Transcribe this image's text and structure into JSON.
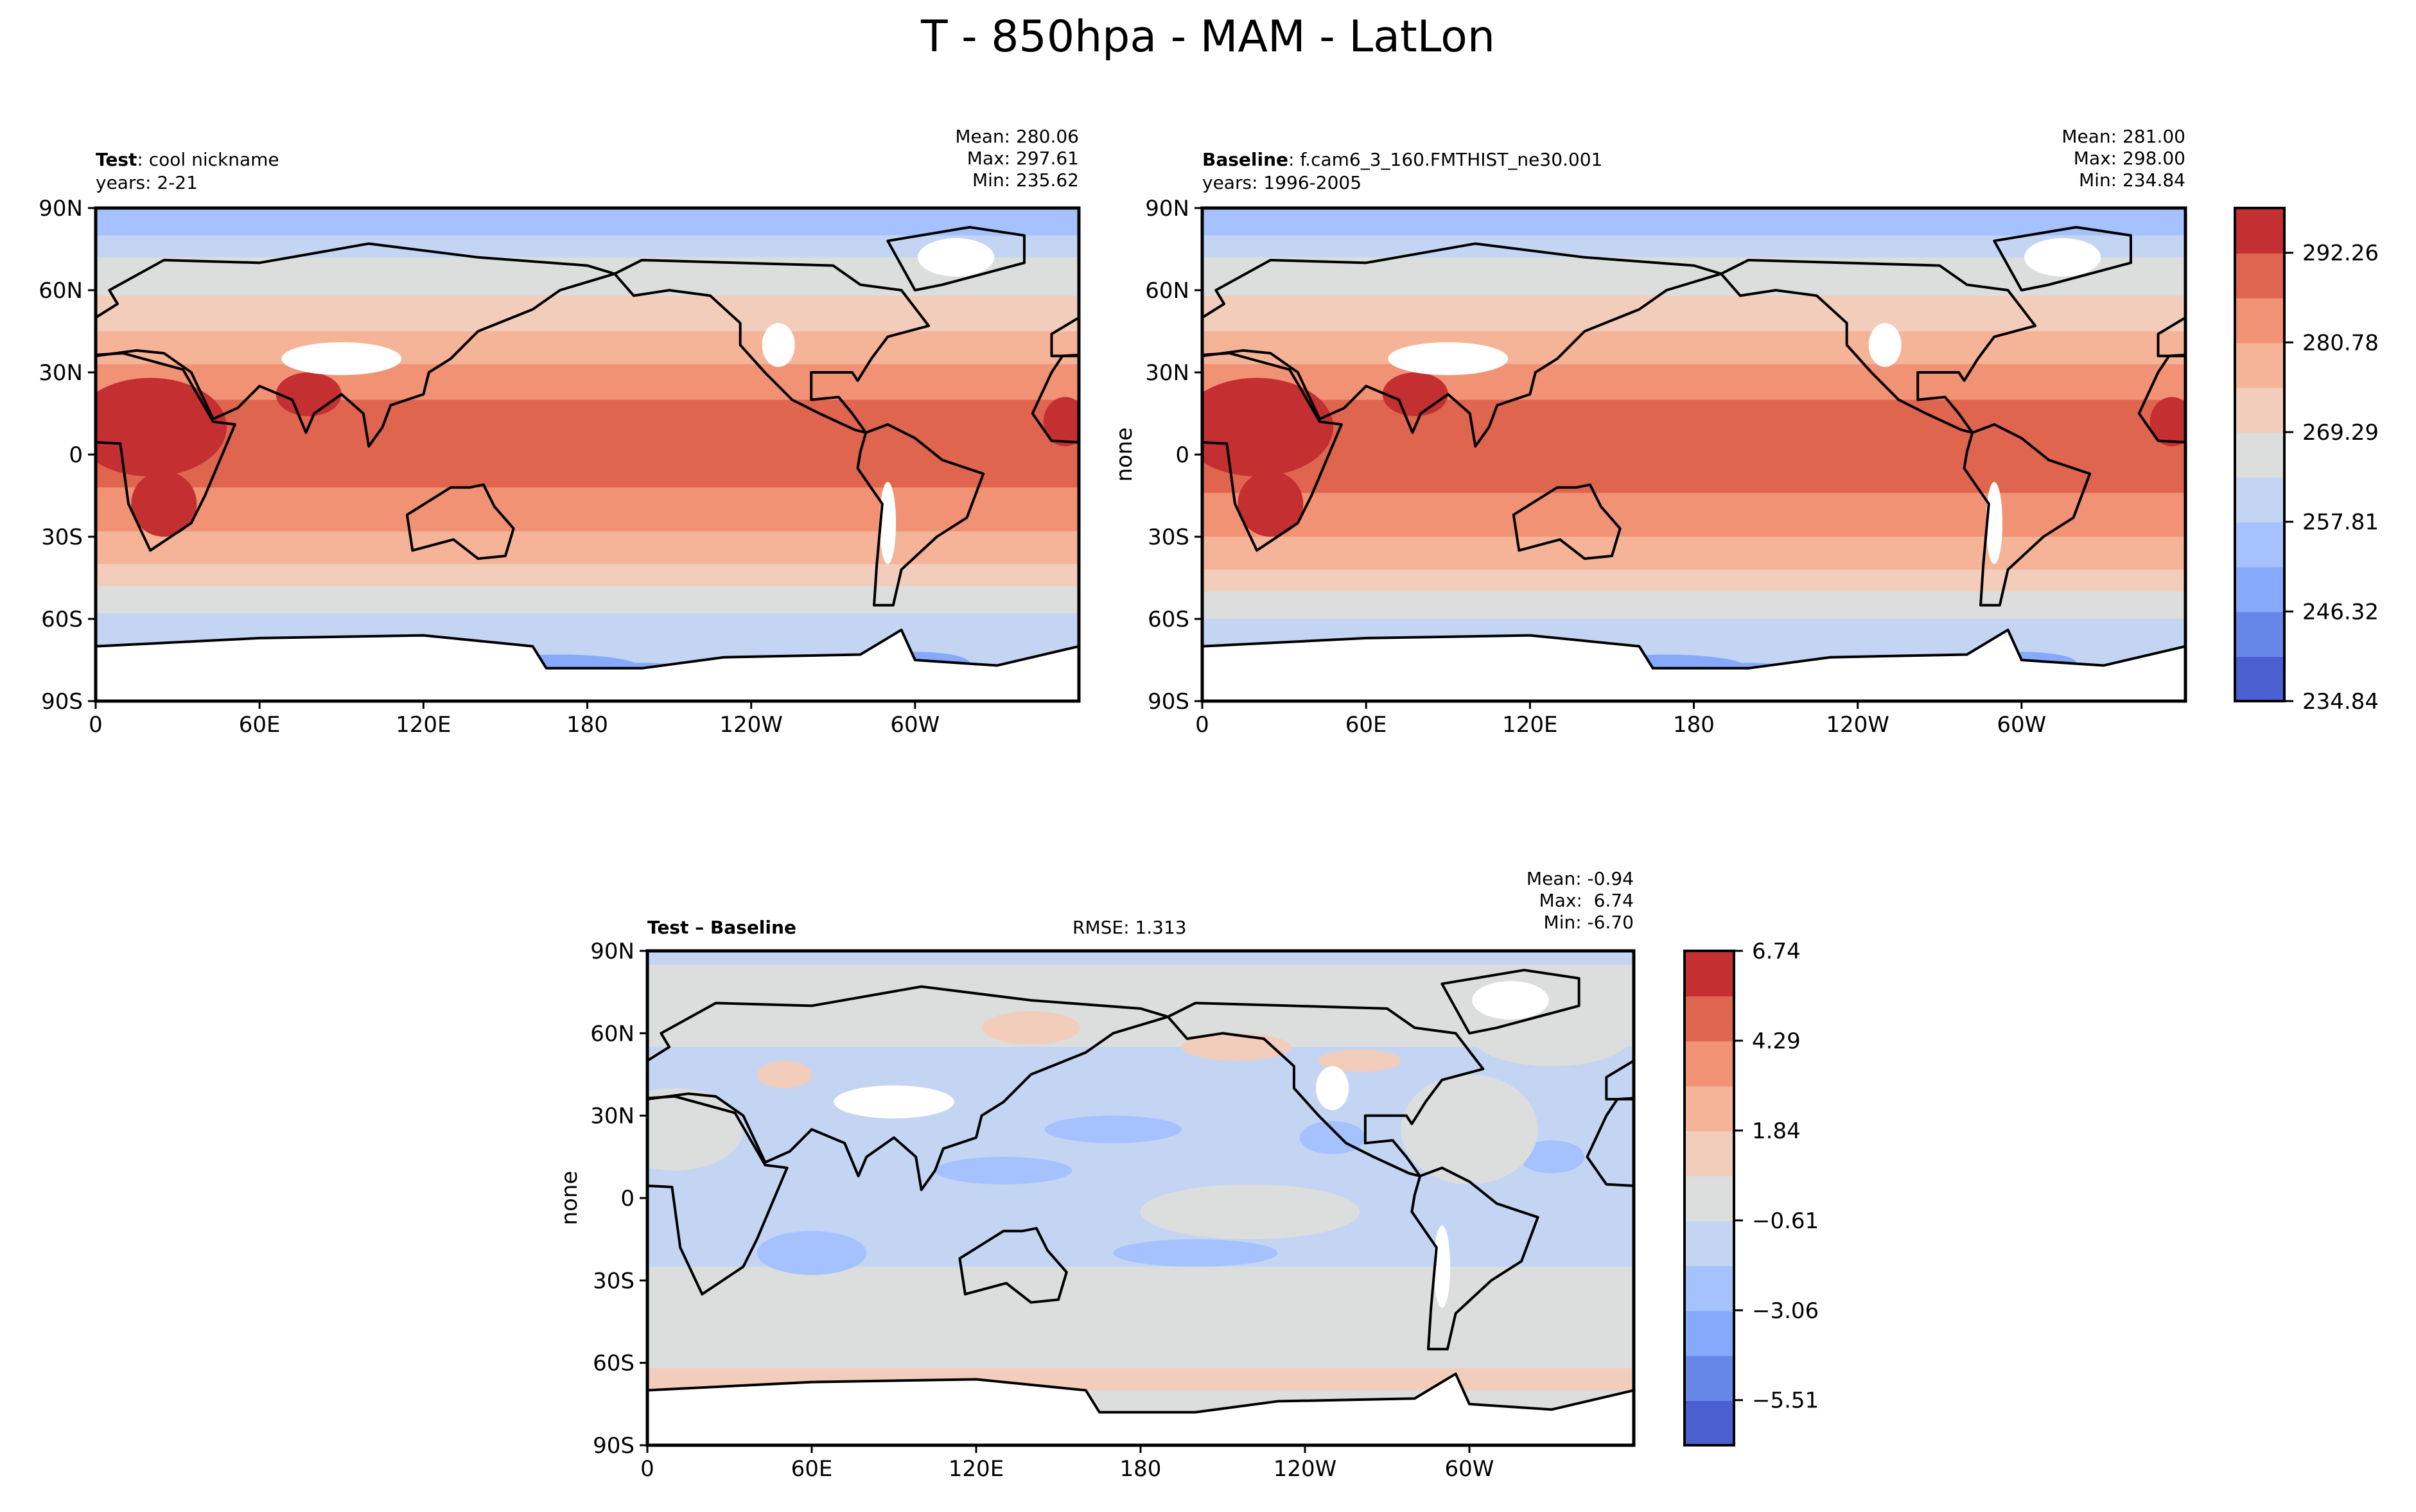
{
  "figure_title": "T - 850hpa - MAM - LatLon",
  "colors": {
    "levels": [
      "#4a5fd0",
      "#6687e8",
      "#86a9fc",
      "#a5c2fe",
      "#c4d5f3",
      "#dcdddd",
      "#f2cdbb",
      "#f5b497",
      "#f29274",
      "#e0654f",
      "#c43032"
    ],
    "land_outline": "#000000",
    "mask": "#ffffff"
  },
  "chart_data": [
    {
      "type": "heatmap",
      "panel": "test",
      "label_bold": "Test",
      "label_rest": ": cool nickname",
      "years": "years: 2-21",
      "stats": {
        "mean": "Mean: 280.06",
        "max": "Max: 297.61",
        "min": "Min: 235.62"
      },
      "ylabel": "",
      "xticks": [
        "0",
        "60E",
        "120E",
        "180",
        "120W",
        "60W"
      ],
      "yticks": [
        "90N",
        "60N",
        "30N",
        "0",
        "30S",
        "60S",
        "90S"
      ],
      "xlim": [
        0,
        360
      ],
      "ylim": [
        -90,
        90
      ],
      "zonal_levels": [
        {
          "lat": 90,
          "lvl": 3
        },
        {
          "lat": 80,
          "lvl": 4
        },
        {
          "lat": 72,
          "lvl": 5
        },
        {
          "lat": 58,
          "lvl": 6
        },
        {
          "lat": 45,
          "lvl": 7
        },
        {
          "lat": 33,
          "lvl": 8
        },
        {
          "lat": 20,
          "lvl": 9
        },
        {
          "lat": -12,
          "lvl": 8
        },
        {
          "lat": -28,
          "lvl": 7
        },
        {
          "lat": -40,
          "lvl": 6
        },
        {
          "lat": -48,
          "lvl": 5
        },
        {
          "lat": -58,
          "lvl": 4
        }
      ]
    },
    {
      "type": "heatmap",
      "panel": "baseline",
      "label_bold": "Baseline",
      "label_rest": ": f.cam6_3_160.FMTHIST_ne30.001",
      "years": "years: 1996-2005",
      "stats": {
        "mean": "Mean: 281.00",
        "max": "Max: 298.00",
        "min": "Min: 234.84"
      },
      "ylabel": "none",
      "xticks": [
        "0",
        "60E",
        "120E",
        "180",
        "120W",
        "60W"
      ],
      "yticks": [
        "90N",
        "60N",
        "30N",
        "0",
        "30S",
        "60S",
        "90S"
      ],
      "xlim": [
        0,
        360
      ],
      "ylim": [
        -90,
        90
      ],
      "zonal_levels": [
        {
          "lat": 90,
          "lvl": 3
        },
        {
          "lat": 80,
          "lvl": 4
        },
        {
          "lat": 72,
          "lvl": 5
        },
        {
          "lat": 58,
          "lvl": 6
        },
        {
          "lat": 45,
          "lvl": 7
        },
        {
          "lat": 33,
          "lvl": 8
        },
        {
          "lat": 20,
          "lvl": 9
        },
        {
          "lat": -14,
          "lvl": 8
        },
        {
          "lat": -30,
          "lvl": 7
        },
        {
          "lat": -42,
          "lvl": 6
        },
        {
          "lat": -50,
          "lvl": 5
        },
        {
          "lat": -60,
          "lvl": 4
        }
      ],
      "colorbar": {
        "ticks": [
          "292.26",
          "280.78",
          "269.29",
          "257.81",
          "246.32",
          "234.84"
        ],
        "range": [
          234.84,
          297.99
        ],
        "levels": 11
      }
    },
    {
      "type": "heatmap",
      "panel": "difference",
      "label_bold": "Test – Baseline",
      "rmse": "RMSE: 1.313",
      "stats": {
        "mean": "Mean: -0.94",
        "max": "Max:  6.74",
        "min": "Min: -6.70"
      },
      "ylabel": "none",
      "xticks": [
        "0",
        "60E",
        "120E",
        "180",
        "120W",
        "60W"
      ],
      "yticks": [
        "90N",
        "60N",
        "30N",
        "0",
        "30S",
        "60S",
        "90S"
      ],
      "xlim": [
        0,
        360
      ],
      "ylim": [
        -90,
        90
      ],
      "zonal_levels": [
        {
          "lat": 90,
          "lvl": 4
        },
        {
          "lat": 85,
          "lvl": 5
        },
        {
          "lat": 75,
          "lvl": 5
        },
        {
          "lat": 55,
          "lvl": 4
        },
        {
          "lat": -25,
          "lvl": 5
        },
        {
          "lat": -62,
          "lvl": 6
        },
        {
          "lat": -70,
          "lvl": 5
        }
      ],
      "colorbar": {
        "ticks": [
          "6.74",
          "4.29",
          "1.84",
          "−0.61",
          "−3.06",
          "−5.51"
        ],
        "range": [
          -6.74,
          6.74
        ],
        "levels": 11
      }
    }
  ]
}
